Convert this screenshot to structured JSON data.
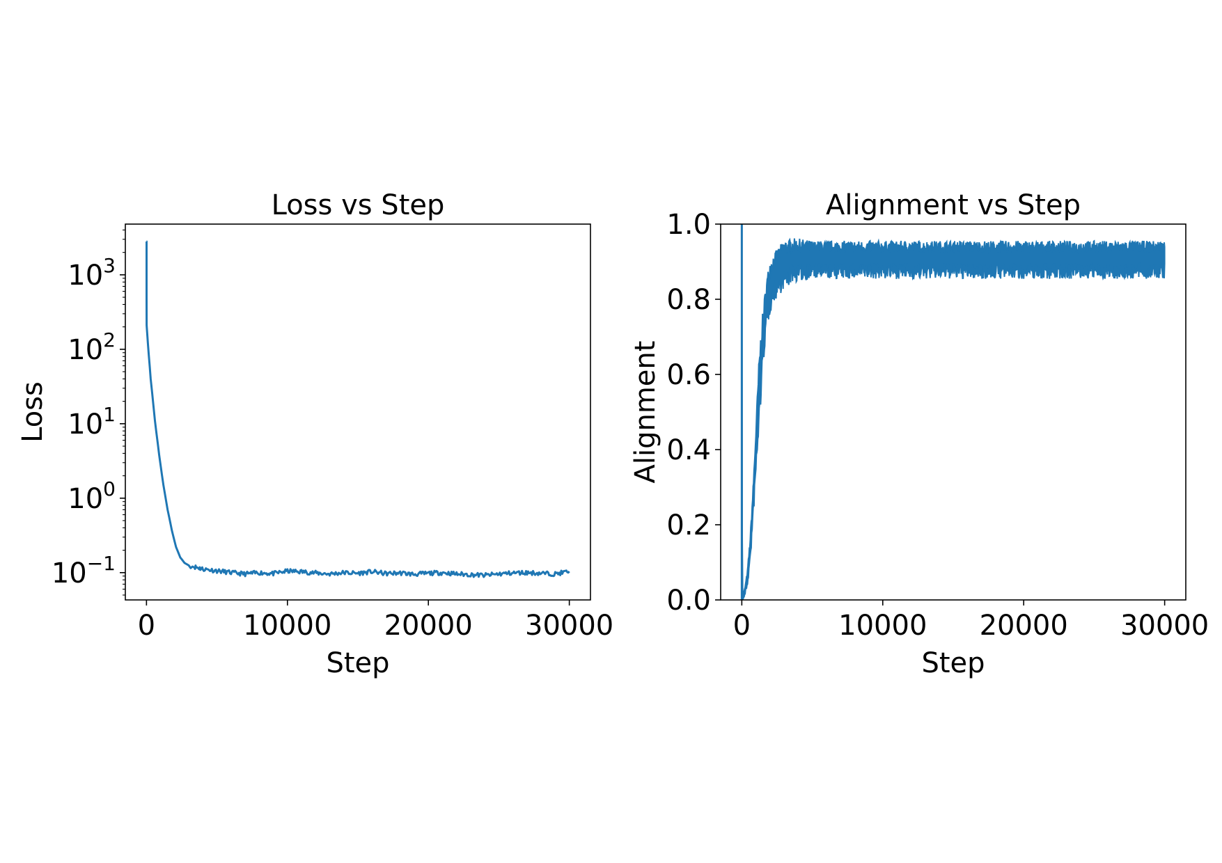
{
  "chart_data": [
    {
      "type": "line",
      "title": "Loss vs Step",
      "xlabel": "Step",
      "ylabel": "Loss",
      "yscale": "log",
      "xlim": [
        -1500,
        31500
      ],
      "ylim": [
        0.043,
        4800
      ],
      "grid": false,
      "color": "#1f77b4",
      "xticks": [
        0,
        10000,
        20000,
        30000
      ],
      "xtick_labels": [
        "0",
        "10000",
        "20000",
        "30000"
      ],
      "yticks": [
        0.1,
        1,
        10,
        100,
        1000
      ],
      "ytick_labels": [
        {
          "base": "10",
          "exp": "−1"
        },
        {
          "base": "10",
          "exp": "0"
        },
        {
          "base": "10",
          "exp": "1"
        },
        {
          "base": "10",
          "exp": "2"
        },
        {
          "base": "10",
          "exp": "3"
        }
      ],
      "series": [
        {
          "x": [
            0,
            5,
            10,
            100,
            300,
            600,
            900,
            1200,
            1500,
            1800,
            2100,
            2400,
            2700,
            3000,
            3400,
            4000,
            5000,
            6000,
            7000,
            8000,
            9000,
            10000,
            11000,
            12000,
            13000,
            14000,
            15000,
            16000,
            17000,
            18000,
            19000,
            20000,
            21000,
            22000,
            23000,
            24000,
            25000,
            26000,
            27000,
            28000,
            29000,
            30000
          ],
          "y": [
            2800,
            2800,
            210,
            120,
            40,
            11,
            3.8,
            1.5,
            0.7,
            0.37,
            0.22,
            0.16,
            0.135,
            0.125,
            0.12,
            0.112,
            0.106,
            0.1,
            0.096,
            0.1,
            0.097,
            0.105,
            0.103,
            0.099,
            0.096,
            0.1,
            0.098,
            0.103,
            0.097,
            0.099,
            0.095,
            0.098,
            0.1,
            0.096,
            0.094,
            0.092,
            0.096,
            0.099,
            0.1,
            0.098,
            0.096,
            0.104
          ]
        }
      ]
    },
    {
      "type": "line",
      "title": "Alignment vs Step",
      "xlabel": "Step",
      "ylabel": "Alignment",
      "xlim": [
        -1500,
        31500
      ],
      "ylim": [
        0.0,
        1.0
      ],
      "grid": false,
      "color": "#1f77b4",
      "xticks": [
        0,
        10000,
        20000,
        30000
      ],
      "xtick_labels": [
        "0",
        "10000",
        "20000",
        "30000"
      ],
      "yticks": [
        0.0,
        0.2,
        0.4,
        0.6,
        0.8,
        1.0
      ],
      "ytick_labels": [
        "0.0",
        "0.2",
        "0.4",
        "0.6",
        "0.8",
        "1.0"
      ],
      "series": [
        {
          "x": [
            0,
            20,
            40,
            100,
            200,
            300,
            400,
            500,
            600,
            700,
            800,
            900,
            1000,
            1100,
            1200,
            1300,
            1400,
            1500,
            1600,
            1700,
            1800,
            1900,
            2000,
            2200,
            2400,
            2600,
            2800,
            3000,
            3200,
            3600,
            4000,
            5000,
            6000,
            7000,
            8000,
            9000,
            10000,
            12000,
            14000,
            16000,
            18000,
            20000,
            22000,
            24000,
            26000,
            28000,
            29000,
            30000
          ],
          "y": [
            1.0,
            0.5,
            0.0,
            0.01,
            0.02,
            0.04,
            0.06,
            0.1,
            0.14,
            0.2,
            0.26,
            0.33,
            0.4,
            0.47,
            0.54,
            0.6,
            0.65,
            0.7,
            0.74,
            0.77,
            0.8,
            0.82,
            0.84,
            0.86,
            0.87,
            0.88,
            0.89,
            0.9,
            0.9,
            0.91,
            0.91,
            0.91,
            0.91,
            0.91,
            0.91,
            0.91,
            0.91,
            0.91,
            0.91,
            0.91,
            0.91,
            0.91,
            0.91,
            0.91,
            0.91,
            0.91,
            0.91,
            0.91
          ],
          "band_half_width": [
            0,
            0,
            0,
            0.005,
            0.008,
            0.01,
            0.015,
            0.02,
            0.025,
            0.03,
            0.035,
            0.04,
            0.05,
            0.06,
            0.07,
            0.07,
            0.06,
            0.06,
            0.05,
            0.05,
            0.05,
            0.05,
            0.05,
            0.045,
            0.045,
            0.045,
            0.045,
            0.045,
            0.045,
            0.04,
            0.04,
            0.035,
            0.035,
            0.035,
            0.035,
            0.035,
            0.035,
            0.035,
            0.035,
            0.035,
            0.035,
            0.035,
            0.035,
            0.035,
            0.035,
            0.035,
            0.035,
            0.035
          ]
        }
      ]
    }
  ]
}
